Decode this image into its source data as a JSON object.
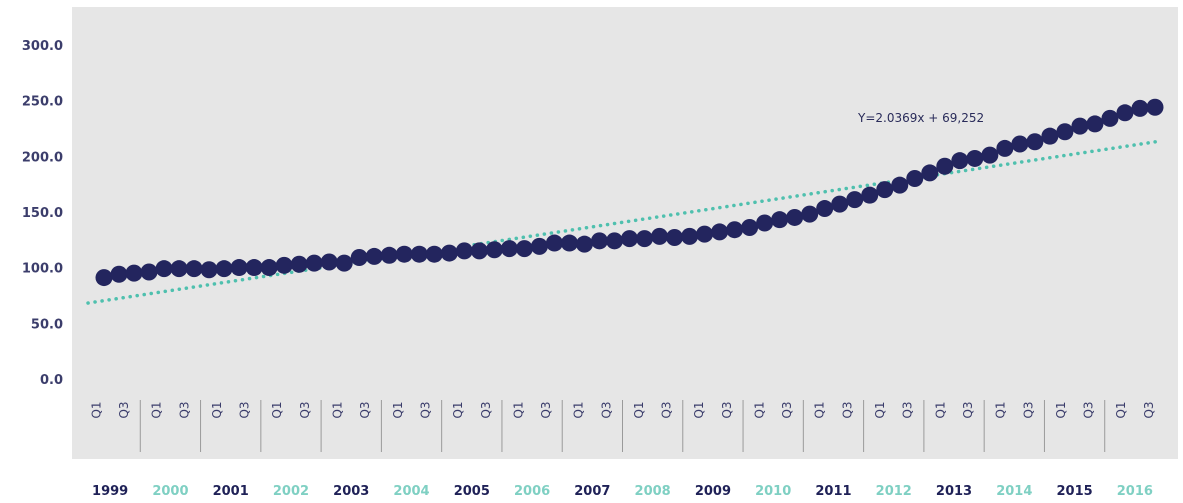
{
  "chart_data": {
    "type": "line",
    "title": "",
    "xlabel": "",
    "ylabel": "",
    "ylim": [
      0,
      300
    ],
    "yticks": [
      "0.0",
      "50.0",
      "100.0",
      "150.0",
      "200.0",
      "250.0",
      "300.0"
    ],
    "quarter_labels": [
      "Q1",
      "Q3"
    ],
    "years": [
      "1999",
      "2000",
      "2001",
      "2002",
      "2003",
      "2004",
      "2005",
      "2006",
      "2007",
      "2008",
      "2009",
      "2010",
      "2011",
      "2012",
      "2013",
      "2014",
      "2015",
      "2016"
    ],
    "year_colors": [
      "#1f2157",
      "#7fd0c3"
    ],
    "grid": false,
    "background": "#e6e6e6",
    "series": [
      {
        "type": "scatter",
        "color": "#23255e",
        "values": [
          92,
          95,
          96,
          97,
          100,
          100,
          100,
          99,
          100,
          101,
          101,
          101,
          103,
          104,
          105,
          106,
          105,
          110,
          111,
          112,
          113,
          113,
          113,
          114,
          116,
          116,
          117,
          118,
          118,
          120,
          123,
          123,
          122,
          125,
          125,
          127,
          127,
          129,
          128,
          129,
          131,
          133,
          135,
          137,
          141,
          144,
          146,
          149,
          154,
          158,
          162,
          166,
          171,
          175,
          181,
          186,
          192,
          197,
          199,
          202,
          208,
          212,
          214,
          219,
          223,
          228,
          230,
          235,
          240,
          244,
          245
        ]
      },
      {
        "type": "trendline",
        "color": "#4fc0ae",
        "slope": 2.0369,
        "intercept": 69.252,
        "equation": "Y=2.0369x + 69,252"
      }
    ]
  }
}
